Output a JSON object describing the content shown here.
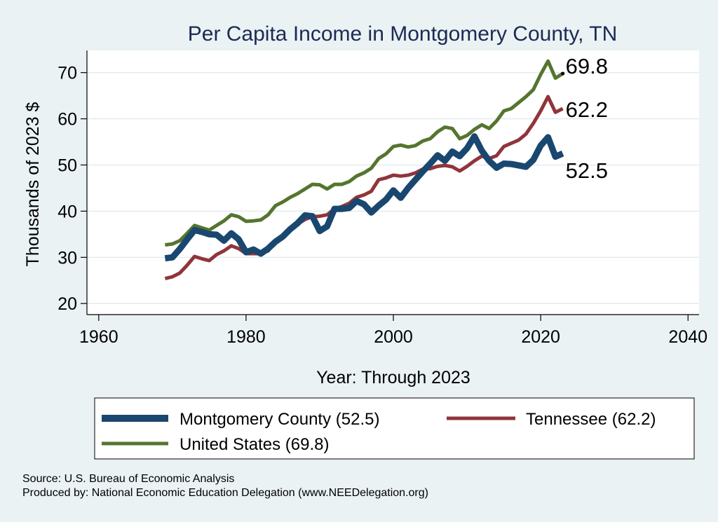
{
  "chart_data": {
    "type": "line",
    "title": "Per Capita Income in Montgomery County, TN",
    "xlabel": "Year: Through 2023",
    "ylabel": "Thousands of 2023 $",
    "xlim": [
      1958.4,
      2041.5
    ],
    "ylim": [
      17.6,
      74.8
    ],
    "xticks": [
      1960,
      1980,
      2000,
      2020,
      2040
    ],
    "yticks": [
      20,
      30,
      40,
      50,
      60,
      70
    ],
    "grid": "horizontal",
    "legend_position": "bottom",
    "x": [
      1969,
      1970,
      1971,
      1972,
      1973,
      1974,
      1975,
      1976,
      1977,
      1978,
      1979,
      1980,
      1981,
      1982,
      1983,
      1984,
      1985,
      1986,
      1987,
      1988,
      1989,
      1990,
      1991,
      1992,
      1993,
      1994,
      1995,
      1996,
      1997,
      1998,
      1999,
      2000,
      2001,
      2002,
      2003,
      2004,
      2005,
      2006,
      2007,
      2008,
      2009,
      2010,
      2011,
      2012,
      2013,
      2014,
      2015,
      2016,
      2017,
      2018,
      2019,
      2020,
      2021,
      2022,
      2023
    ],
    "series": [
      {
        "name": "Montgomery County",
        "legend_label": "Montgomery County (52.5)",
        "color": "#1a476f",
        "end_label": "52.5",
        "values": [
          29.8,
          30.0,
          31.8,
          33.9,
          35.9,
          35.5,
          35.0,
          34.9,
          33.6,
          35.2,
          33.9,
          31.1,
          31.7,
          30.8,
          31.9,
          33.4,
          34.5,
          36.1,
          37.4,
          39.1,
          38.9,
          35.7,
          36.7,
          40.5,
          40.5,
          40.7,
          42.2,
          41.5,
          39.7,
          41.2,
          42.5,
          44.5,
          42.9,
          45.0,
          46.8,
          48.6,
          50.3,
          52.1,
          50.9,
          52.9,
          51.9,
          53.6,
          56.2,
          53.1,
          50.9,
          49.4,
          50.3,
          50.2,
          49.9,
          49.6,
          51.1,
          54.2,
          56.0,
          51.8,
          52.5
        ]
      },
      {
        "name": "Tennessee",
        "legend_label": "Tennessee (62.2)",
        "color": "#90353b",
        "end_label": "62.2",
        "values": [
          25.4,
          25.8,
          26.6,
          28.3,
          30.2,
          29.7,
          29.3,
          30.6,
          31.4,
          32.5,
          31.9,
          30.8,
          30.8,
          30.8,
          31.4,
          33.4,
          34.9,
          35.9,
          37.2,
          38.2,
          38.8,
          38.9,
          39.2,
          40.5,
          41.0,
          41.7,
          43.0,
          43.5,
          44.3,
          46.8,
          47.2,
          47.8,
          47.6,
          47.8,
          48.3,
          49.1,
          49.2,
          49.7,
          49.9,
          49.6,
          48.7,
          49.7,
          50.9,
          51.9,
          51.4,
          52.0,
          54.0,
          54.7,
          55.4,
          56.7,
          59.0,
          61.7,
          64.8,
          61.4,
          62.2
        ]
      },
      {
        "name": "United States",
        "legend_label": "United States (69.8)",
        "color": "#55752f",
        "end_label": "69.8",
        "values": [
          32.7,
          32.9,
          33.6,
          35.2,
          36.9,
          36.4,
          35.9,
          36.9,
          37.9,
          39.2,
          38.8,
          37.8,
          37.9,
          38.1,
          39.2,
          41.2,
          42.0,
          43.0,
          43.8,
          44.8,
          45.8,
          45.7,
          44.8,
          45.8,
          45.8,
          46.4,
          47.6,
          48.3,
          49.3,
          51.4,
          52.4,
          54.0,
          54.3,
          53.9,
          54.2,
          55.2,
          55.7,
          57.2,
          58.2,
          57.9,
          55.7,
          56.4,
          57.7,
          58.7,
          57.9,
          59.5,
          61.7,
          62.2,
          63.5,
          64.8,
          66.3,
          69.6,
          72.5,
          68.8,
          69.8
        ]
      }
    ],
    "legend": [
      {
        "label": "Montgomery County (52.5)",
        "color": "#1a476f"
      },
      {
        "label": "Tennessee (62.2)",
        "color": "#90353b"
      },
      {
        "label": "United States (69.8)",
        "color": "#55752f"
      }
    ],
    "notes": [
      "Source: U.S. Bureau of Economic Analysis",
      "Produced by: National Economic Education Delegation (www.NEEDelegation.org)"
    ]
  },
  "colors": {
    "background": "#eaf2f3",
    "plot_background": "#ffffff",
    "gridline": "#eaf2f3",
    "title": "#1c2a54"
  }
}
